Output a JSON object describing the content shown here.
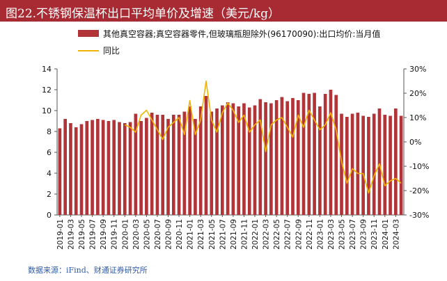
{
  "header": {
    "title": "图22.不锈钢保温杯出口平均单价及增速（美元/kg）"
  },
  "footer": {
    "source": "数据来源：iFind、财通证券研究所"
  },
  "colors": {
    "bar": "#b13439",
    "line": "#f0b400",
    "title_bg": "#a82b33",
    "source": "#2f5aa8"
  },
  "chart_data": {
    "type": "bar+line",
    "title": "不锈钢保温杯出口平均单价及增速（美元/kg）",
    "x_tick_labels": [
      "2019-01",
      "2019-03",
      "2019-05",
      "2019-07",
      "2019-09",
      "2019-11",
      "2020-01",
      "2020-03",
      "2020-05",
      "2020-07",
      "2020-09",
      "2020-11",
      "2021-01",
      "2021-03",
      "2021-05",
      "2021-07",
      "2021-09",
      "2021-11",
      "2022-01",
      "2022-03",
      "2022-05",
      "2022-07",
      "2022-09",
      "2022-11",
      "2023-01",
      "2023-03",
      "2023-05",
      "2023-07",
      "2023-09",
      "2023-11",
      "2024-01",
      "2024-03"
    ],
    "left_axis": {
      "ylim": [
        0,
        14
      ],
      "ticks": [
        "0",
        "2",
        "4",
        "6",
        "8",
        "10",
        "12",
        "14"
      ]
    },
    "right_axis": {
      "ylim": [
        -30,
        30
      ],
      "ticks": [
        "-30%",
        "-20%",
        "-10%",
        "0%",
        "10%",
        "20%",
        "30%"
      ]
    },
    "series": [
      {
        "name": "其他真空容器;真空容器零件,但玻璃瓶胆除外(96170090):出口均价:当月值",
        "type": "bar",
        "axis": "left",
        "values": [
          8.3,
          9.2,
          8.8,
          8.4,
          8.7,
          9.0,
          9.1,
          9.2,
          9.1,
          9.0,
          9.1,
          8.9,
          8.8,
          8.9,
          9.7,
          9.0,
          9.3,
          9.8,
          9.6,
          9.6,
          9.2,
          9.6,
          9.6,
          9.9,
          10.4,
          9.2,
          10.4,
          11.4,
          9.9,
          10.2,
          10.5,
          10.8,
          10.7,
          10.4,
          10.7,
          10.3,
          10.5,
          11.1,
          10.8,
          10.7,
          11.0,
          11.3,
          10.9,
          11.2,
          11.0,
          11.7,
          11.6,
          11.7,
          10.4,
          11.6,
          12.0,
          11.5,
          9.7,
          9.4,
          9.7,
          9.8,
          9.5,
          9.4,
          9.7,
          10.2,
          9.6,
          9.5,
          10.2,
          9.5
        ]
      },
      {
        "name": "同比",
        "type": "line",
        "axis": "right",
        "values": [
          null,
          null,
          null,
          null,
          null,
          null,
          null,
          null,
          null,
          null,
          null,
          null,
          7,
          6,
          4,
          11,
          13,
          9,
          5,
          1,
          6,
          8,
          10,
          3,
          17,
          3,
          9,
          25,
          9,
          4,
          12,
          16,
          13,
          8,
          11,
          4,
          7,
          9,
          -4,
          7,
          9,
          10,
          6,
          2,
          11,
          6,
          13,
          9,
          5,
          7,
          12,
          5,
          -8,
          -17,
          -11,
          -13,
          -13,
          -21,
          -14,
          -9,
          -18,
          -16,
          -15,
          -17
        ]
      },
      {
        "name": "同比_early",
        "type": "line",
        "axis": "right",
        "hidden": true,
        "values": []
      }
    ]
  }
}
